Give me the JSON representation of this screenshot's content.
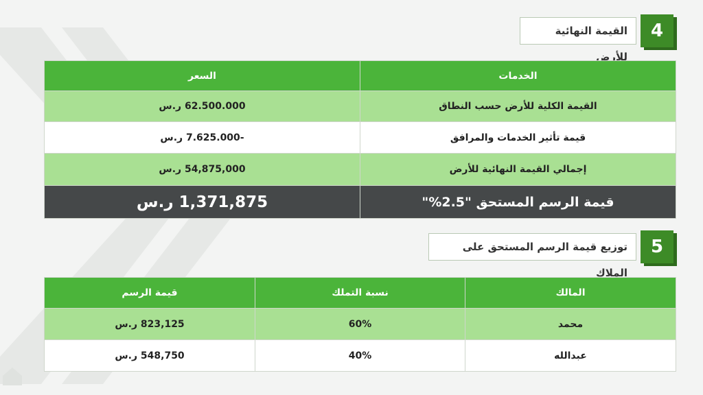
{
  "colors": {
    "header_green": "#4bb43a",
    "row_green": "#a9e093",
    "dark_row": "#454849",
    "badge_green": "#3d8b27"
  },
  "section4": {
    "number": "4",
    "title": "القيمة النهائية للأرض",
    "table": {
      "headers": [
        "الخدمات",
        "السعر"
      ],
      "rows": [
        {
          "service": "القيمة الكلية للأرض حسب النطاق",
          "price": "62.500.000 ر.س"
        },
        {
          "service": "قيمة تأثير الخدمات والمرافق",
          "price": "-7.625.000 ر.س"
        },
        {
          "service": "إجمالي القيمة النهائية للأرض",
          "price": "54,875,000 ر.س"
        },
        {
          "service": "قيمة الرسم المستحق \"2.5%\"",
          "price": "1,371,875 ر.س"
        }
      ]
    }
  },
  "section5": {
    "number": "5",
    "title": "توزيع قيمة الرسم المستحق على الملاك",
    "table": {
      "headers": [
        "المالك",
        "نسبة التملك",
        "قيمة الرسم"
      ],
      "rows": [
        {
          "owner": "محمد",
          "share": "60%",
          "fee": "823,125 ر.س"
        },
        {
          "owner": "عبدالله",
          "share": "40%",
          "fee": "548,750 ر.س"
        }
      ]
    }
  }
}
